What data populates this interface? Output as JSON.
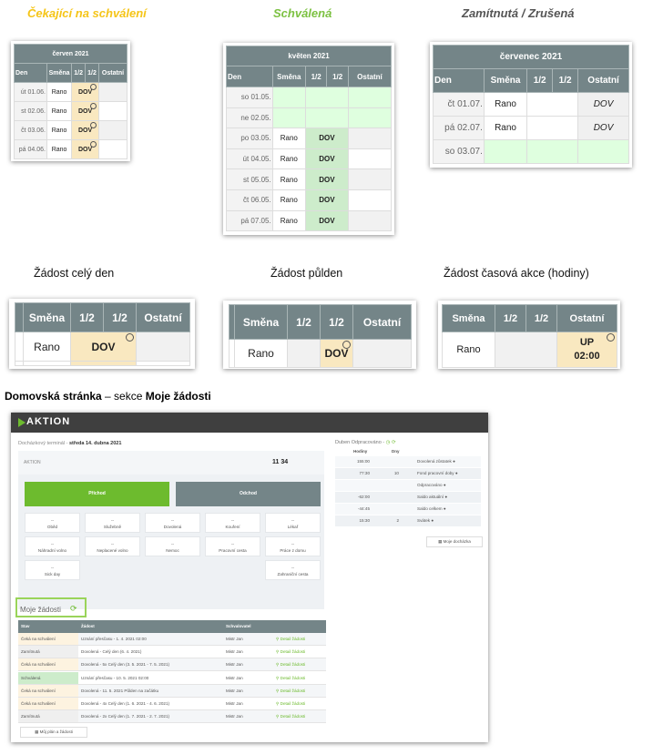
{
  "captions": {
    "pending": "Čekající na schválení",
    "approved": "Schválená",
    "rejected": "Zamítnutá / Zrušená",
    "full_day": "Žádost celý den",
    "half_day": "Žádost půlden",
    "time_action": "Žádost časová akce (hodiny)"
  },
  "colors": {
    "pending": "#f5c518",
    "approved": "#7cc142",
    "rejected": "#555555",
    "header": "#748588",
    "green": "#6dbb2e"
  },
  "columns": [
    "Den",
    "Směna",
    "1/2",
    "1/2",
    "Ostatní"
  ],
  "table_pending": {
    "month": "červen 2021",
    "rows": [
      [
        "út 01.06.",
        "Rano",
        "DOV"
      ],
      [
        "st 02.06.",
        "Rano",
        "DOV"
      ],
      [
        "čt 03.06.",
        "Rano",
        "DOV"
      ],
      [
        "pá 04.06.",
        "Rano",
        "DOV"
      ]
    ]
  },
  "table_approved": {
    "month": "květen 2021",
    "rows": [
      [
        "so 01.05.",
        "",
        ""
      ],
      [
        "ne 02.05.",
        "",
        ""
      ],
      [
        "po 03.05.",
        "Rano",
        "DOV"
      ],
      [
        "út 04.05.",
        "Rano",
        "DOV"
      ],
      [
        "st 05.05.",
        "Rano",
        "DOV"
      ],
      [
        "čt 06.05.",
        "Rano",
        "DOV"
      ],
      [
        "pá 07.05.",
        "Rano",
        "DOV"
      ]
    ]
  },
  "table_rejected": {
    "month": "červenec 2021",
    "rows": [
      [
        "čt 01.07.",
        "Rano",
        "DOV"
      ],
      [
        "pá 02.07.",
        "Rano",
        "DOV"
      ],
      [
        "so 03.07.",
        "",
        ""
      ]
    ]
  },
  "crop_full": {
    "shift": "Rano",
    "value": "DOV"
  },
  "crop_half": {
    "shift": "Rano",
    "value": "DOV"
  },
  "crop_time": {
    "shift": "Rano",
    "value": "UP",
    "time": "02:00"
  },
  "section_heading": {
    "bold1": "Domovská stránka",
    "middle": " – sekce ",
    "bold2": "Moje žádosti"
  },
  "dashboard": {
    "logo": "AKTION",
    "terminal_label": "Docházkový terminál - ",
    "terminal_date": "středa 14. dubna 2021",
    "company": "AKTION",
    "time": "11 34",
    "arrival": "Příchod",
    "departure": "Odchod",
    "actions": [
      {
        "t": "--",
        "l": "Oběd"
      },
      {
        "t": "--",
        "l": "Služebně"
      },
      {
        "t": "--",
        "l": "Dovolená"
      },
      {
        "t": "--",
        "l": "Kouření"
      },
      {
        "t": "--",
        "l": "Lékař"
      },
      {
        "t": "--",
        "l": "Náhradní volno"
      },
      {
        "t": "--",
        "l": "Neplacené volno"
      },
      {
        "t": "--",
        "l": "Nemoc"
      },
      {
        "t": "--",
        "l": "Pracovní cesta"
      },
      {
        "t": "--",
        "l": "Práce z domu"
      },
      {
        "t": "--",
        "l": "Sick day"
      },
      {
        "t": "--",
        "l": "Zahraniční cesta"
      }
    ],
    "summary_title": "Duben Odpracováno - ",
    "summary_cols": [
      "Hodiny",
      "Dny"
    ],
    "summary": [
      [
        "155:00",
        "",
        "Dovolená zůstatek"
      ],
      [
        "77:30",
        "10",
        "Fond pracovní doby"
      ],
      [
        "",
        "",
        "Odpracováno"
      ],
      [
        "-62:00",
        "",
        "Saldo aktuální"
      ],
      [
        "-44:45",
        "",
        "Saldo celkem"
      ],
      [
        "15:30",
        "2",
        "Svátek"
      ]
    ],
    "my_attendance": "Moje docházka",
    "requests_title": "Moje žádosti",
    "req_cols": [
      "Stav",
      "Žádost",
      "Schvalovatel",
      ""
    ],
    "requests": [
      {
        "s": "Čeká na schválení",
        "r": "Uznání přesčasu - 1. 4. 2021 02:00",
        "a": "Mistr Jan",
        "k": "p"
      },
      {
        "s": "Zamítnutá",
        "r": "Dovolená - Celý den (6. 4. 2021)",
        "a": "Mistr Jan",
        "k": "z"
      },
      {
        "s": "Čeká na schválení",
        "r": "Dovolená - 5x Celý den (3. 5. 2021 - 7. 5. 2021)",
        "a": "Mistr Jan",
        "k": "p"
      },
      {
        "s": "Schválená",
        "r": "Uznání přesčasu - 10. 5. 2021 02:00",
        "a": "Mistr Jan",
        "k": "s"
      },
      {
        "s": "Čeká na schválení",
        "r": "Dovolená - 11. 5. 2021 Půlden na začátku",
        "a": "Mistr Jan",
        "k": "p"
      },
      {
        "s": "Čeká na schválení",
        "r": "Dovolená - 4x Celý den (1. 6. 2021 - 4. 6. 2021)",
        "a": "Mistr Jan",
        "k": "p"
      },
      {
        "s": "Zamítnutá",
        "r": "Dovolená - 2x Celý den (1. 7. 2021 - 2. 7. 2021)",
        "a": "Mistr Jan",
        "k": "z"
      }
    ],
    "detail_label": "Detail žádosti",
    "plan_button": "Můj plán a žádosti"
  }
}
